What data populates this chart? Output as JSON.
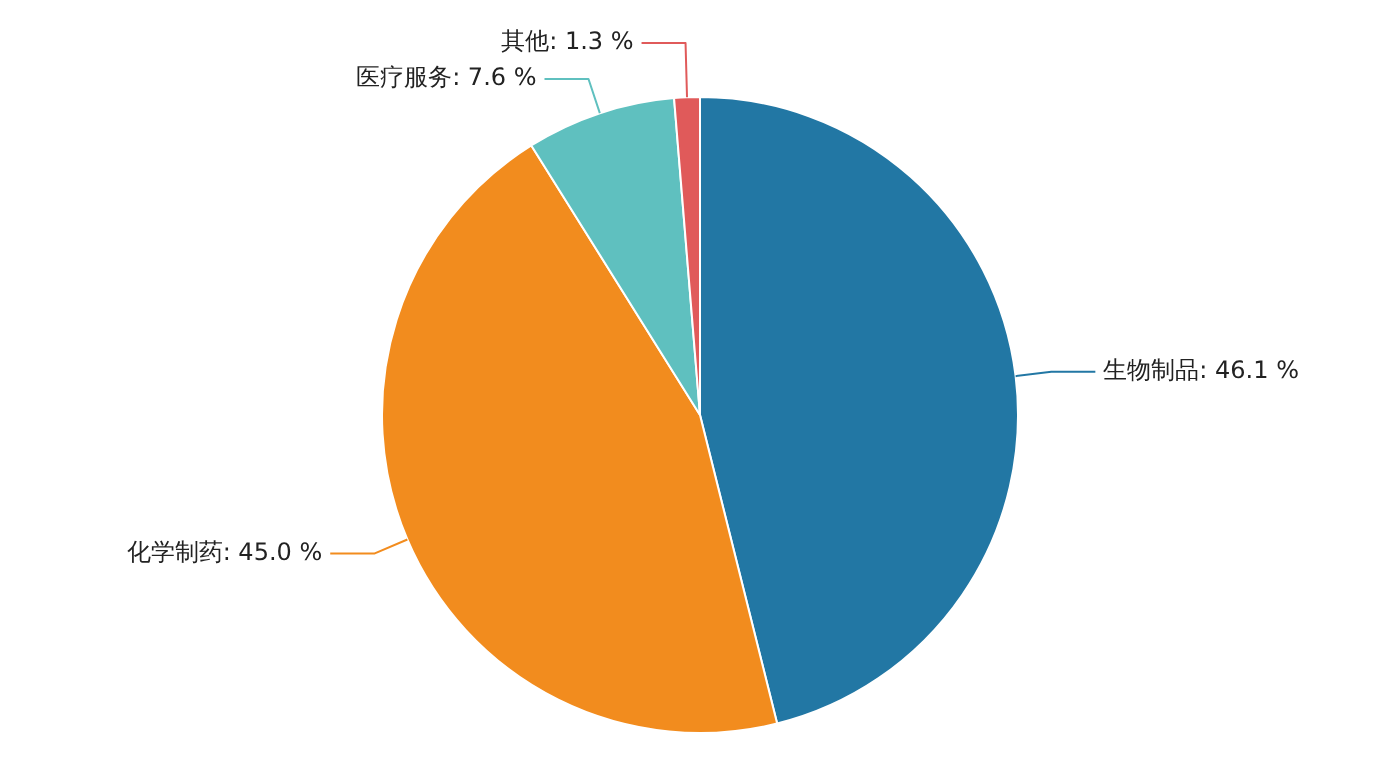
{
  "chart_data": {
    "type": "pie",
    "categories": [
      "生物制品",
      "化学制药",
      "医疗服务",
      "其他"
    ],
    "values": [
      46.1,
      45.0,
      7.6,
      1.3
    ],
    "colors": [
      "#2277a4",
      "#f28c1e",
      "#5fc0bf",
      "#e05a5a"
    ],
    "value_labels": [
      "46.1 %",
      "45.0 %",
      "7.6 %",
      "1.3 %"
    ],
    "legend": false
  }
}
